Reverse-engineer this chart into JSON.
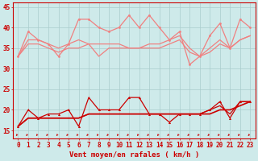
{
  "x": [
    0,
    1,
    2,
    3,
    4,
    5,
    6,
    7,
    8,
    9,
    10,
    11,
    12,
    13,
    14,
    15,
    16,
    17,
    18,
    19,
    20,
    21,
    22,
    23
  ],
  "rafales_high": [
    33,
    39,
    37,
    36,
    33,
    36,
    42,
    42,
    40,
    39,
    40,
    43,
    40,
    43,
    40,
    37,
    39,
    31,
    33,
    38,
    41,
    35,
    42,
    40
  ],
  "avg_upper": [
    33,
    37,
    37,
    36,
    35,
    36,
    37,
    36,
    36,
    36,
    36,
    35,
    35,
    36,
    36,
    37,
    38,
    35,
    33,
    35,
    37,
    35,
    37,
    38
  ],
  "avg_lower": [
    33,
    36,
    36,
    35,
    34,
    35,
    35,
    36,
    33,
    35,
    35,
    35,
    35,
    35,
    35,
    36,
    37,
    34,
    33,
    34,
    36,
    35,
    37,
    38
  ],
  "wind_peak": [
    16,
    20,
    18,
    19,
    19,
    20,
    16,
    23,
    20,
    20,
    20,
    23,
    23,
    19,
    19,
    17,
    19,
    19,
    19,
    20,
    22,
    18,
    22,
    22
  ],
  "wind_avg1": [
    16,
    18,
    18,
    18,
    18,
    18,
    18,
    19,
    19,
    19,
    19,
    19,
    19,
    19,
    19,
    19,
    19,
    19,
    19,
    19,
    20,
    20,
    21,
    22
  ],
  "wind_avg2": [
    16,
    18,
    18,
    18,
    18,
    18,
    18,
    19,
    19,
    19,
    19,
    19,
    19,
    19,
    19,
    19,
    19,
    19,
    19,
    20,
    21,
    19,
    22,
    22
  ],
  "bg_color": "#ceeaea",
  "grid_color": "#aacccc",
  "light_red": "#f08080",
  "medium_red": "#e05050",
  "dark_red": "#cc0000",
  "xlabel": "Vent moyen/en rafales ( km/h )",
  "ylim": [
    13,
    46
  ],
  "yticks": [
    15,
    20,
    25,
    30,
    35,
    40,
    45
  ],
  "xticks": [
    0,
    1,
    2,
    3,
    4,
    5,
    6,
    7,
    8,
    9,
    10,
    11,
    12,
    13,
    14,
    15,
    16,
    17,
    18,
    19,
    20,
    21,
    22,
    23
  ],
  "tick_fontsize": 5.5,
  "label_fontsize": 6.5
}
